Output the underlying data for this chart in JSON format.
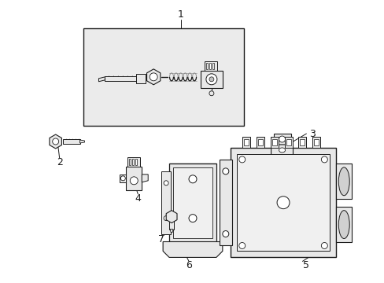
{
  "background_color": "#ffffff",
  "line_color": "#1a1a1a",
  "gray_fill": "#e8e8e8",
  "dark_gray": "#c0c0c0",
  "label_color": "#000000",
  "fig_w": 4.89,
  "fig_h": 3.6,
  "dpi": 100
}
